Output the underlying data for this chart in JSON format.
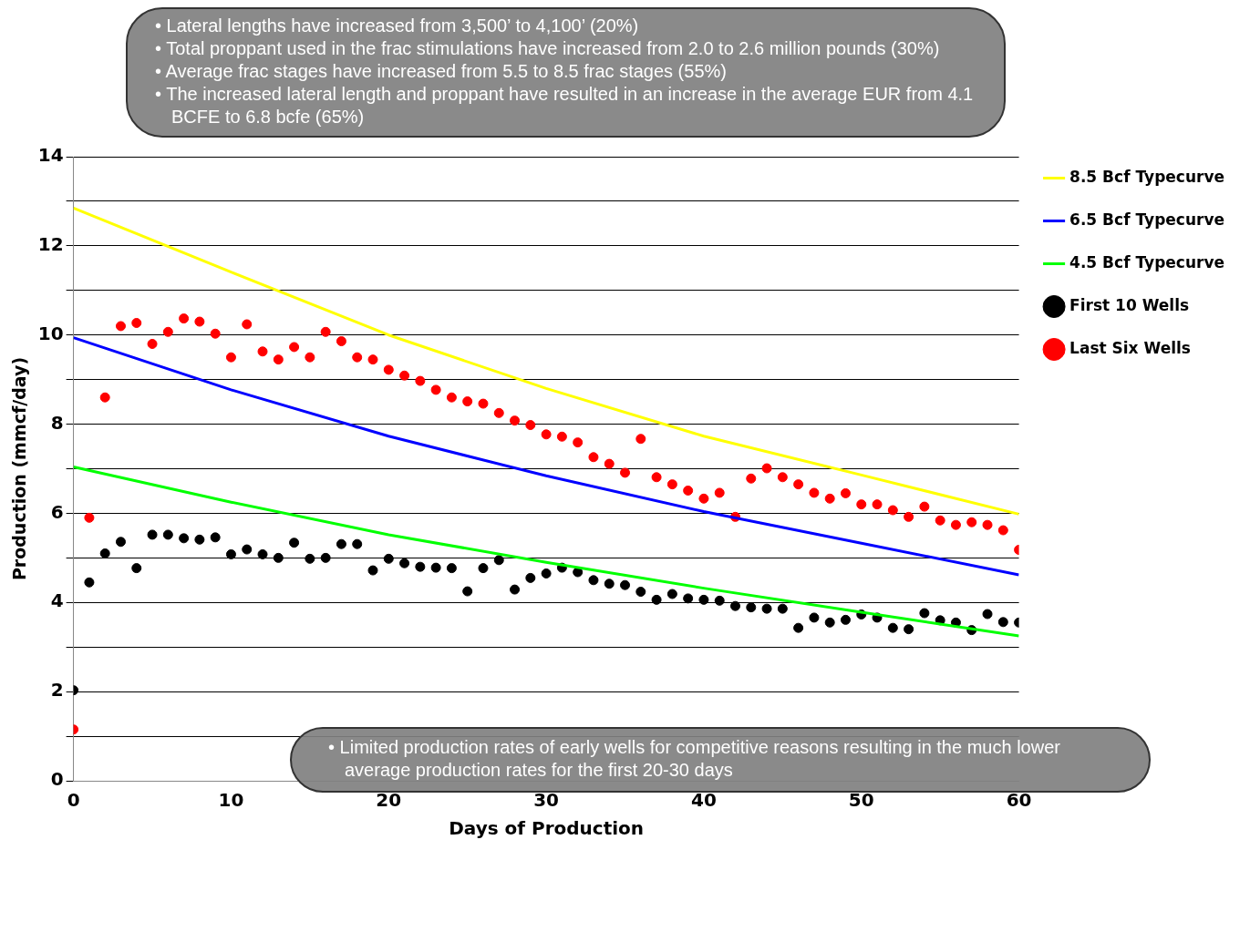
{
  "chart_data": {
    "type": "scatter",
    "xlabel": "Days of Production",
    "ylabel": "Production (mmcf/day)",
    "xlim": [
      0,
      60
    ],
    "xticks": [
      0,
      10,
      20,
      30,
      40,
      50,
      60
    ],
    "ylim": [
      0,
      14
    ],
    "yticks": [
      0,
      {
        "value": 1,
        "label": null
      },
      2,
      {
        "value": 3,
        "label": null
      },
      4,
      {
        "value": 5,
        "label": null
      },
      6,
      {
        "value": 7,
        "label": null
      },
      8,
      {
        "value": 9,
        "label": null
      },
      10,
      {
        "value": 11,
        "label": null
      },
      12,
      {
        "value": 13,
        "label": null
      },
      14
    ],
    "grid": "y",
    "legend": "top right",
    "x": [
      0,
      1,
      2,
      3,
      4,
      5,
      6,
      7,
      8,
      9,
      10,
      11,
      12,
      13,
      14,
      15,
      16,
      17,
      18,
      19,
      20,
      21,
      22,
      23,
      24,
      25,
      26,
      27,
      28,
      29,
      30,
      31,
      32,
      33,
      34,
      35,
      36,
      37,
      38,
      39,
      40,
      41,
      42,
      43,
      44,
      45,
      46,
      47,
      48,
      49,
      50,
      51,
      52,
      53,
      54,
      55,
      56,
      57,
      58,
      59,
      60
    ],
    "series": [
      {
        "name": "8.5 Bcf Typecurve",
        "type": "line",
        "color": "#ffff00",
        "x": [
          0,
          10,
          20,
          30,
          40,
          50,
          60
        ],
        "values": [
          12.85,
          11.41,
          10.0,
          8.8,
          7.73,
          6.86,
          5.98
        ]
      },
      {
        "name": "6.5 Bcf Typecurve",
        "type": "line",
        "color": "#0000ff",
        "x": [
          0,
          10,
          20,
          30,
          40,
          50,
          60
        ],
        "values": [
          9.94,
          8.77,
          7.73,
          6.84,
          6.04,
          5.33,
          4.62
        ]
      },
      {
        "name": "4.5 Bcf Typecurve",
        "type": "line",
        "color": "#00ff00",
        "x": [
          0,
          10,
          20,
          30,
          40,
          50,
          60
        ],
        "values": [
          7.04,
          6.25,
          5.52,
          4.9,
          4.32,
          3.78,
          3.25
        ]
      },
      {
        "name": "First 10 Wells",
        "color": "#000000",
        "marker": "circle",
        "values": [
          2.03,
          4.45,
          5.1,
          5.36,
          4.77,
          5.52,
          5.52,
          5.44,
          5.41,
          5.46,
          5.08,
          5.19,
          5.08,
          5.0,
          5.34,
          4.98,
          5.0,
          5.31,
          5.31,
          4.72,
          4.98,
          4.88,
          4.8,
          4.78,
          4.77,
          4.25,
          4.77,
          4.95,
          4.29,
          4.55,
          4.65,
          4.78,
          4.68,
          4.5,
          4.42,
          4.39,
          4.24,
          4.06,
          4.19,
          4.09,
          4.06,
          4.04,
          3.92,
          3.89,
          3.86,
          3.86,
          3.43,
          3.66,
          3.55,
          3.61,
          3.73,
          3.66,
          3.43,
          3.4,
          3.76,
          3.6,
          3.55,
          3.38,
          3.74,
          3.56,
          3.55
        ]
      },
      {
        "name": "Last Six Wells",
        "color": "#ff0000",
        "marker": "circle",
        "values": [
          1.15,
          5.9,
          8.6,
          10.2,
          10.27,
          9.8,
          10.07,
          10.37,
          10.3,
          10.03,
          9.5,
          10.24,
          9.63,
          9.45,
          9.73,
          9.5,
          10.07,
          9.86,
          9.5,
          9.45,
          9.22,
          9.09,
          8.97,
          8.77,
          8.6,
          8.51,
          8.46,
          8.25,
          8.08,
          7.98,
          7.77,
          7.72,
          7.59,
          7.26,
          7.11,
          6.91,
          7.67,
          6.81,
          6.65,
          6.51,
          6.33,
          6.46,
          5.92,
          6.78,
          7.01,
          6.81,
          6.65,
          6.46,
          6.33,
          6.45,
          6.2,
          6.2,
          6.07,
          5.92,
          6.15,
          5.84,
          5.74,
          5.8,
          5.74,
          5.62,
          5.18
        ]
      }
    ],
    "annotations": [
      "• Lateral lengths have increased from 3,500’ to 4,100’ (20%)",
      "• Total proppant used in the frac stimulations have increased from 2.0 to 2.6 million pounds (30%)",
      "• Average frac stages have increased from 5.5 to 8.5 frac stages (55%)",
      "• The increased lateral length and proppant  have resulted in an increase in the average EUR from 4.1 BCFE to 6.8 bcfe (65%)",
      "• Limited production rates of early wells for competitive reasons resulting in the much lower average production rates for the first 20-30 days"
    ]
  }
}
